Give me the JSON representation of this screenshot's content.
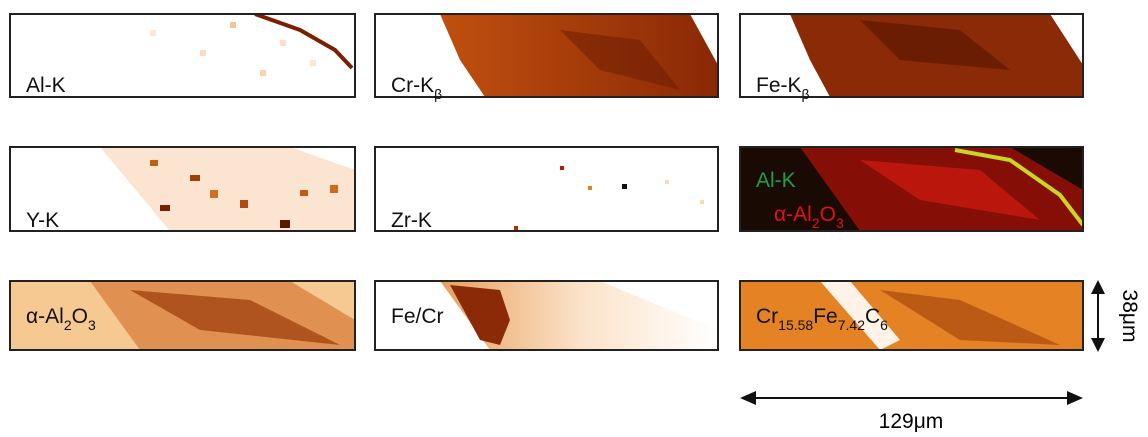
{
  "panels": [
    {
      "labels": [
        {
          "color": "#111111",
          "segments": [
            {
              "text": "Al-K"
            }
          ]
        }
      ]
    },
    {
      "labels": [
        {
          "color": "#111111",
          "segments": [
            {
              "text": "Cr-K"
            },
            {
              "text": "β",
              "sub": true
            }
          ]
        }
      ]
    },
    {
      "labels": [
        {
          "color": "#111111",
          "segments": [
            {
              "text": "Fe-K"
            },
            {
              "text": "β",
              "sub": true
            }
          ]
        }
      ]
    },
    {
      "labels": [
        {
          "color": "#111111",
          "segments": [
            {
              "text": "Y-K"
            }
          ]
        }
      ]
    },
    {
      "labels": [
        {
          "color": "#111111",
          "segments": [
            {
              "text": "Zr-K"
            }
          ]
        }
      ]
    },
    {
      "labels": [
        {
          "color": "#1fa03c",
          "segments": [
            {
              "text": "Al-K"
            }
          ]
        },
        {
          "color": "#e01212",
          "segments": [
            {
              "text": "α-Al"
            },
            {
              "text": "2",
              "sub": true
            },
            {
              "text": "O"
            },
            {
              "text": "3",
              "sub": true
            }
          ]
        }
      ]
    },
    {
      "labels": [
        {
          "color": "#111111",
          "segments": [
            {
              "text": "α-Al"
            },
            {
              "text": "2",
              "sub": true
            },
            {
              "text": "O"
            },
            {
              "text": "3",
              "sub": true
            }
          ]
        }
      ]
    },
    {
      "labels": [
        {
          "color": "#111111",
          "segments": [
            {
              "text": "Fe/Cr"
            }
          ]
        }
      ]
    },
    {
      "labels": [
        {
          "color": "#111111",
          "segments": [
            {
              "text": "Cr"
            },
            {
              "text": "15.58",
              "sub": true
            },
            {
              "text": "Fe"
            },
            {
              "text": "7.42",
              "sub": true
            },
            {
              "text": "C"
            },
            {
              "text": "6",
              "sub": true
            }
          ]
        }
      ]
    }
  ],
  "scale_bars": {
    "vertical": "38μm",
    "horizontal": "129μm"
  }
}
